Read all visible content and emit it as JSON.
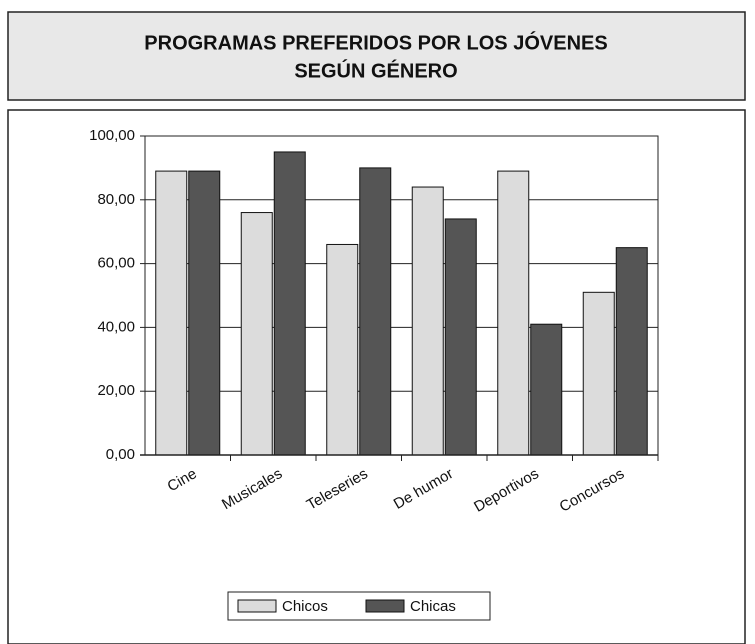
{
  "chart_data": {
    "type": "bar",
    "title": [
      "PROGRAMAS PREFERIDOS POR LOS JÓVENES",
      "SEGÚN GÉNERO"
    ],
    "categories": [
      "Cine",
      "Musicales",
      "Teleseries",
      "De humor",
      "Deportivos",
      "Concursos"
    ],
    "series": [
      {
        "name": "Chicos",
        "color": "#dcdcdc",
        "values": [
          89,
          76,
          66,
          84,
          89,
          51
        ]
      },
      {
        "name": "Chicas",
        "color": "#555555",
        "values": [
          89,
          95,
          90,
          74,
          41,
          65
        ]
      }
    ],
    "ylim": [
      0,
      100
    ],
    "yticks": [
      {
        "value": 0,
        "label": "0,00"
      },
      {
        "value": 20,
        "label": "20,00"
      },
      {
        "value": 40,
        "label": "40,00"
      },
      {
        "value": 60,
        "label": "60,00"
      },
      {
        "value": 80,
        "label": "80,00"
      },
      {
        "value": 100,
        "label": "100,00"
      }
    ],
    "grid": true,
    "legend": "bottom"
  }
}
